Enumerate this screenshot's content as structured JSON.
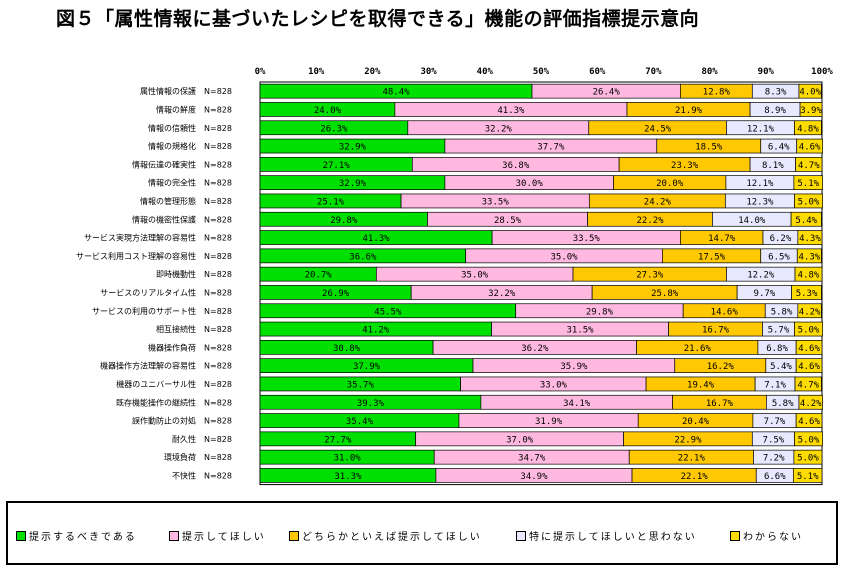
{
  "title": "図５「属性情報に基づいたレシピを取得できる」機能の評価指標提示意向",
  "colors": [
    "#00e000",
    "#ffb8e0",
    "#ffc800",
    "#e8e8ff",
    "#ffdc00"
  ],
  "chart_data": {
    "type": "bar",
    "orientation": "horizontal",
    "stacked": "percent",
    "title": "図５「属性情報に基づいたレシピを取得できる」機能の評価指標提示意向",
    "xlabel": "",
    "ylabel": "",
    "xlim": [
      0,
      100
    ],
    "x_ticks": [
      "0%",
      "10%",
      "20%",
      "30%",
      "40%",
      "50%",
      "60%",
      "70%",
      "80%",
      "90%",
      "100%"
    ],
    "legend_position": "bottom",
    "categories": [
      "属性情報の保護　N=828",
      "情報の鮮度　N=828",
      "情報の信頼性　N=828",
      "情報の規格化　N=828",
      "情報伝達の確実性　N=828",
      "情報の完全性　N=828",
      "情報の管理形態　N=828",
      "情報の機密性保護　N=828",
      "サービス実現方法理解の容易性　N=828",
      "サービス利用コスト理解の容易性　N=828",
      "即時機動性　N=828",
      "サービスのリアルタイム性　N=828",
      "サービスの利用のサポート性　N=828",
      "相互接続性　N=828",
      "機器操作負荷　N=828",
      "機器操作方法理解の容易性　N=828",
      "機器のユニバーサル性　N=828",
      "既存機能操作の継続性　N=828",
      "誤作動防止の対処　N=828",
      "耐久性　N=828",
      "環境負荷　N=828",
      "不快性　N=828"
    ],
    "series": [
      {
        "name": "提示するべきである",
        "values": [
          48.4,
          24.0,
          26.3,
          32.9,
          27.1,
          32.9,
          25.1,
          29.8,
          41.3,
          36.6,
          20.7,
          26.9,
          45.5,
          41.2,
          30.8,
          37.9,
          35.7,
          39.3,
          35.4,
          27.7,
          31.0,
          31.3
        ]
      },
      {
        "name": "提示してほしい",
        "values": [
          26.4,
          41.3,
          32.2,
          37.7,
          36.8,
          30.0,
          33.5,
          28.5,
          33.5,
          35.0,
          35.0,
          32.2,
          29.8,
          31.5,
          36.2,
          35.9,
          33.0,
          34.1,
          31.9,
          37.0,
          34.7,
          34.9
        ]
      },
      {
        "name": "どちらかといえば提示してほしい",
        "values": [
          12.8,
          21.9,
          24.5,
          18.5,
          23.3,
          20.0,
          24.2,
          22.2,
          14.7,
          17.5,
          27.3,
          25.8,
          14.6,
          16.7,
          21.6,
          16.2,
          19.4,
          16.7,
          20.4,
          22.9,
          22.1,
          22.1
        ]
      },
      {
        "name": "特に提示してほしいと思わない",
        "values": [
          8.3,
          8.9,
          12.1,
          6.4,
          8.1,
          12.1,
          12.3,
          14.0,
          6.2,
          6.5,
          12.2,
          9.7,
          5.8,
          5.7,
          6.8,
          5.4,
          7.1,
          5.8,
          7.7,
          7.5,
          7.2,
          6.6
        ]
      },
      {
        "name": "わからない",
        "values": [
          4.0,
          3.9,
          4.8,
          4.6,
          4.7,
          5.1,
          5.0,
          5.4,
          4.3,
          4.3,
          4.8,
          5.3,
          4.2,
          5.0,
          4.6,
          4.6,
          4.7,
          4.2,
          4.6,
          5.0,
          5.0,
          5.1
        ]
      }
    ]
  }
}
